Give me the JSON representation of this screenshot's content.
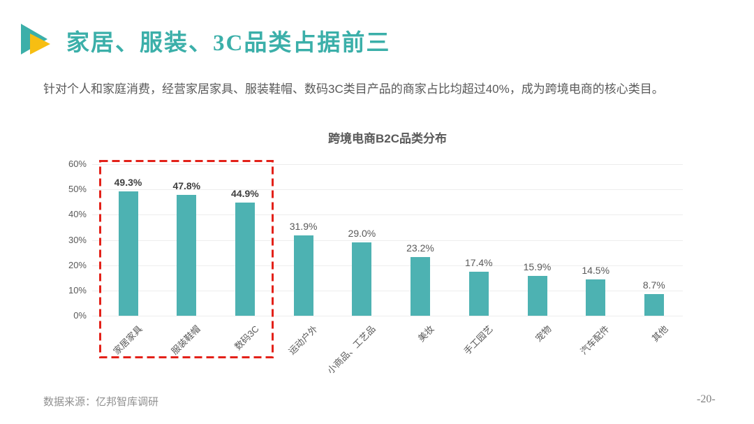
{
  "page": {
    "title": "家居、服装、3C品类占据前三",
    "subtitle": "针对个人和家庭消费，经营家居家具、服装鞋帽、数码3C类目产品的商家占比均超过40%，成为跨境电商的核心类目。",
    "source": "数据来源：亿邦智库调研",
    "page_number": "-20-"
  },
  "colors": {
    "accent_teal": "#3BAFA9",
    "bar_teal": "#4DB2B2",
    "icon_yellow": "#F7BE12",
    "highlight_red": "#E32119",
    "text_gray": "#595959",
    "grid_gray": "#EDEDED"
  },
  "chart_data": {
    "type": "bar",
    "title": "跨境电商B2C品类分布",
    "categories": [
      "家居家具",
      "服装鞋帽",
      "数码3C",
      "运动户外",
      "小商品、工艺品",
      "美妆",
      "手工园艺",
      "宠物",
      "汽车配件",
      "其他"
    ],
    "values": [
      49.3,
      47.8,
      44.9,
      31.9,
      29.0,
      23.2,
      17.4,
      15.9,
      14.5,
      8.7
    ],
    "value_labels": [
      "49.3%",
      "47.8%",
      "44.9%",
      "31.9%",
      "29.0%",
      "23.2%",
      "17.4%",
      "15.9%",
      "14.5%",
      "8.7%"
    ],
    "ytick_labels": [
      "60%",
      "50%",
      "40%",
      "30%",
      "20%",
      "10%",
      "0%"
    ],
    "ylim": [
      0,
      60
    ],
    "grid": true,
    "legend": "none",
    "highlight_first_n": 3,
    "highlight_style": "red dashed box around top 3 categories"
  }
}
